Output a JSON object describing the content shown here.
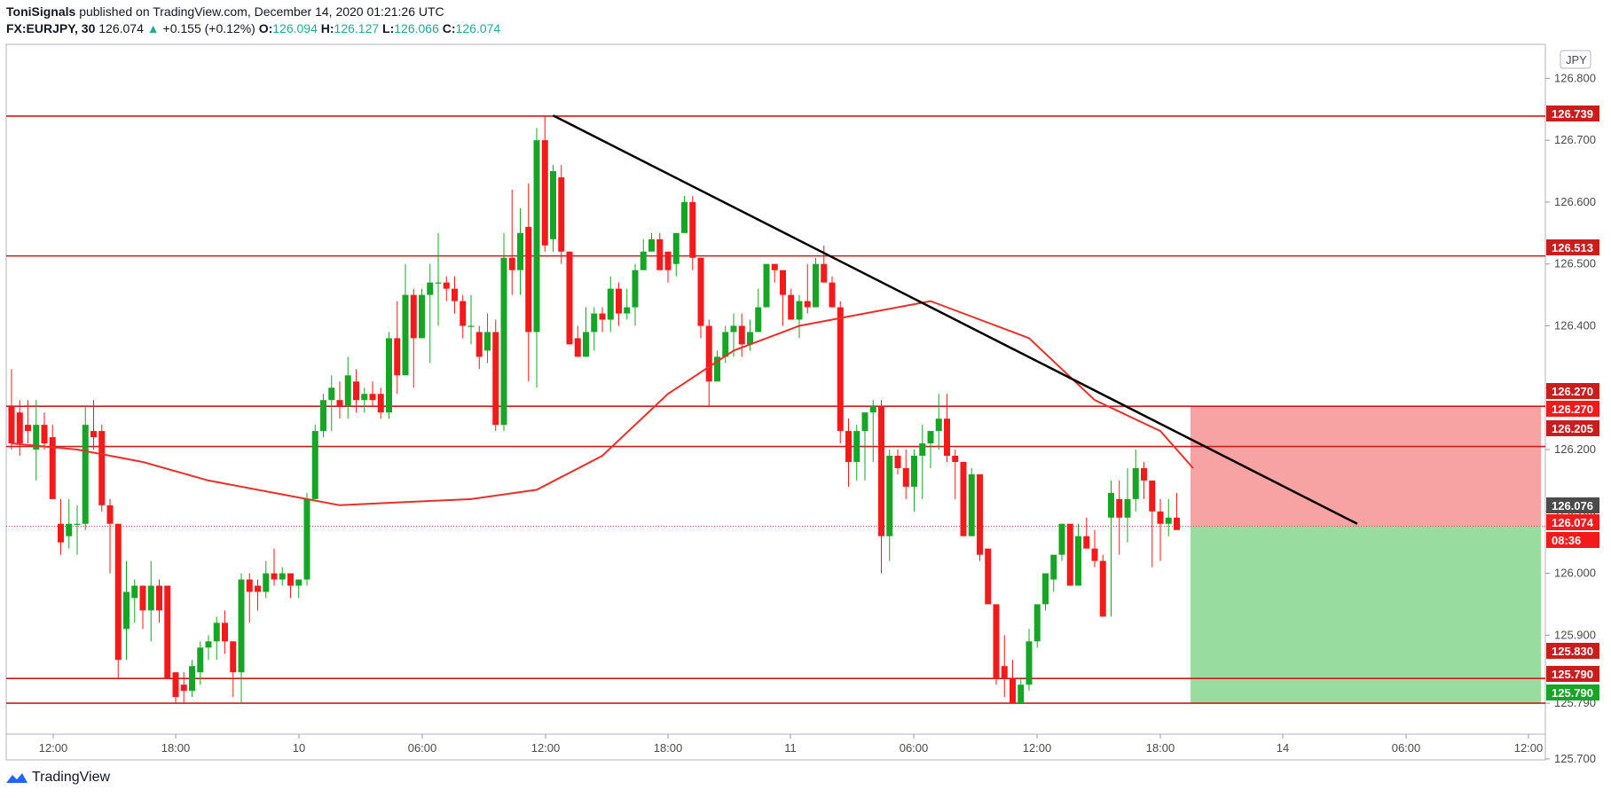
{
  "header": {
    "author": "ToniSignals",
    "published": "published on TradingView.com, December 14, 2020 01:21:26 UTC",
    "symbol": "FX:EURJPY, 30",
    "last": "126.074",
    "change": "+0.155 (+0.12%)",
    "o_label": "O:",
    "o_value": "126.094",
    "h_label": "H:",
    "h_value": "126.127",
    "l_label": "L:",
    "l_value": "126.066",
    "c_label": "C:",
    "c_value": "126.074"
  },
  "footer": {
    "brand": "TradingView"
  },
  "colors": {
    "up": "#17a527",
    "down": "#f21a1a",
    "hline": "#c91e1e",
    "ma": "#e8302a",
    "trend": "#000000",
    "risk": "#f7a3a3",
    "reward": "#98dd9f",
    "grid": "#e9e9e9"
  },
  "chart_data": {
    "type": "candlestick",
    "currency_label": "JPY",
    "ylim": [
      125.74,
      126.855
    ],
    "yticks": [
      "126.800",
      "126.700",
      "126.600",
      "126.500",
      "126.400",
      "126.300",
      "126.200",
      "126.100",
      "126.000",
      "125.900",
      "125.790",
      "125.700"
    ],
    "xticks": [
      "12:00",
      "18:00",
      "10",
      "06:00",
      "12:00",
      "18:00",
      "11",
      "06:00",
      "12:00",
      "18:00",
      "14",
      "06:00",
      "12:00"
    ],
    "candles": [
      [
        126.33,
        126.2,
        126.27,
        126.21
      ],
      [
        126.28,
        126.19,
        126.26,
        126.21
      ],
      [
        126.28,
        126.21,
        126.24,
        126.23
      ],
      [
        126.28,
        126.15,
        126.2,
        126.24
      ],
      [
        126.26,
        126.2,
        126.24,
        126.21
      ],
      [
        126.24,
        126.15,
        126.22,
        126.12
      ],
      [
        126.12,
        126.03,
        126.08,
        126.05
      ],
      [
        126.12,
        126.04,
        126.06,
        126.08
      ],
      [
        126.11,
        126.03,
        126.08,
        126.08
      ],
      [
        126.27,
        126.07,
        126.08,
        126.24
      ],
      [
        126.28,
        126.2,
        126.23,
        126.22
      ],
      [
        126.24,
        126.1,
        126.23,
        126.11
      ],
      [
        126.12,
        126.0,
        126.11,
        126.08
      ],
      [
        126.08,
        125.83,
        126.08,
        125.86
      ],
      [
        126.02,
        125.86,
        125.91,
        125.97
      ],
      [
        125.99,
        125.92,
        125.96,
        125.98
      ],
      [
        125.98,
        125.91,
        125.98,
        125.94
      ],
      [
        126.02,
        125.89,
        125.94,
        125.98
      ],
      [
        125.99,
        125.92,
        125.98,
        125.94
      ],
      [
        125.98,
        125.83,
        125.98,
        125.83
      ],
      [
        125.84,
        125.79,
        125.84,
        125.8
      ],
      [
        125.84,
        125.79,
        125.82,
        125.81
      ],
      [
        125.86,
        125.8,
        125.81,
        125.85
      ],
      [
        125.89,
        125.82,
        125.84,
        125.88
      ],
      [
        125.9,
        125.86,
        125.88,
        125.89
      ],
      [
        125.93,
        125.86,
        125.89,
        125.92
      ],
      [
        125.94,
        125.87,
        125.92,
        125.89
      ],
      [
        125.89,
        125.8,
        125.89,
        125.84
      ],
      [
        126.0,
        125.79,
        125.84,
        125.99
      ],
      [
        126.0,
        125.92,
        125.99,
        125.97
      ],
      [
        125.99,
        125.94,
        125.98,
        125.97
      ],
      [
        126.02,
        125.96,
        125.97,
        126.0
      ],
      [
        126.04,
        125.98,
        126.0,
        125.99
      ],
      [
        126.01,
        125.98,
        125.99,
        126.0
      ],
      [
        126.0,
        125.96,
        126.0,
        125.98
      ],
      [
        125.99,
        125.96,
        125.98,
        125.99
      ],
      [
        126.13,
        125.98,
        125.99,
        126.12
      ],
      [
        126.24,
        126.12,
        126.12,
        126.23
      ],
      [
        126.29,
        126.22,
        126.23,
        126.28
      ],
      [
        126.32,
        126.23,
        126.28,
        126.3
      ],
      [
        126.31,
        126.25,
        126.28,
        126.27
      ],
      [
        126.35,
        126.25,
        126.27,
        126.32
      ],
      [
        126.33,
        126.26,
        126.31,
        126.28
      ],
      [
        126.3,
        126.26,
        126.28,
        126.29
      ],
      [
        126.31,
        126.27,
        126.29,
        126.28
      ],
      [
        126.3,
        126.25,
        126.29,
        126.26
      ],
      [
        126.39,
        126.25,
        126.26,
        126.38
      ],
      [
        126.44,
        126.29,
        126.38,
        126.32
      ],
      [
        126.5,
        126.37,
        126.32,
        126.45
      ],
      [
        126.46,
        126.3,
        126.45,
        126.38
      ],
      [
        126.46,
        126.38,
        126.38,
        126.45
      ],
      [
        126.5,
        126.34,
        126.45,
        126.47
      ],
      [
        126.55,
        126.4,
        126.47,
        126.47
      ],
      [
        126.48,
        126.44,
        126.47,
        126.46
      ],
      [
        126.48,
        126.42,
        126.46,
        126.44
      ],
      [
        126.45,
        126.38,
        126.44,
        126.4
      ],
      [
        126.45,
        126.37,
        126.4,
        126.4
      ],
      [
        126.4,
        126.33,
        126.39,
        126.35
      ],
      [
        126.42,
        126.34,
        126.36,
        126.39
      ],
      [
        126.41,
        126.23,
        126.39,
        126.24
      ],
      [
        126.55,
        126.23,
        126.24,
        126.51
      ],
      [
        126.62,
        126.45,
        126.51,
        126.49
      ],
      [
        126.59,
        126.45,
        126.49,
        126.55
      ],
      [
        126.63,
        126.31,
        126.56,
        126.39
      ],
      [
        126.72,
        126.3,
        126.39,
        126.7
      ],
      [
        126.74,
        126.52,
        126.7,
        126.53
      ],
      [
        126.66,
        126.52,
        126.54,
        126.65
      ],
      [
        126.66,
        126.5,
        126.64,
        126.52
      ],
      [
        126.52,
        126.4,
        126.52,
        126.37
      ],
      [
        126.4,
        126.35,
        126.38,
        126.35
      ],
      [
        126.43,
        126.35,
        126.35,
        126.39
      ],
      [
        126.43,
        126.36,
        126.39,
        126.42
      ],
      [
        126.43,
        126.39,
        126.42,
        126.41
      ],
      [
        126.48,
        126.39,
        126.41,
        126.46
      ],
      [
        126.47,
        126.4,
        126.46,
        126.42
      ],
      [
        126.46,
        126.41,
        126.42,
        126.43
      ],
      [
        126.5,
        126.4,
        126.43,
        126.49
      ],
      [
        126.54,
        126.49,
        126.49,
        126.52
      ],
      [
        126.55,
        126.52,
        126.52,
        126.54
      ],
      [
        126.55,
        126.51,
        126.54,
        126.49
      ],
      [
        126.5,
        126.47,
        126.52,
        126.49
      ],
      [
        126.55,
        126.48,
        126.5,
        126.55
      ],
      [
        126.61,
        126.55,
        126.55,
        126.6
      ],
      [
        126.61,
        126.49,
        126.6,
        126.51
      ],
      [
        126.51,
        126.38,
        126.51,
        126.4
      ],
      [
        126.41,
        126.27,
        126.4,
        126.31
      ],
      [
        126.36,
        126.31,
        126.31,
        126.35
      ],
      [
        126.4,
        126.34,
        126.35,
        126.39
      ],
      [
        126.42,
        126.35,
        126.39,
        126.4
      ],
      [
        126.42,
        126.35,
        126.4,
        126.37
      ],
      [
        126.41,
        126.36,
        126.37,
        126.39
      ],
      [
        126.46,
        126.39,
        126.39,
        126.43
      ],
      [
        126.5,
        126.44,
        126.43,
        126.5
      ],
      [
        126.5,
        126.47,
        126.5,
        126.49
      ],
      [
        126.49,
        126.4,
        126.49,
        126.45
      ],
      [
        126.46,
        126.42,
        126.45,
        126.41
      ],
      [
        126.45,
        126.38,
        126.41,
        126.44
      ],
      [
        126.5,
        126.42,
        126.44,
        126.43
      ],
      [
        126.51,
        126.44,
        126.43,
        126.5
      ],
      [
        126.53,
        126.47,
        126.5,
        126.47
      ],
      [
        126.48,
        126.44,
        126.47,
        126.43
      ],
      [
        126.44,
        126.21,
        126.43,
        126.23
      ],
      [
        126.25,
        126.14,
        126.23,
        126.18
      ],
      [
        126.24,
        126.15,
        126.18,
        126.23
      ],
      [
        126.26,
        126.15,
        126.23,
        126.26
      ],
      [
        126.28,
        126.18,
        126.26,
        126.27
      ],
      [
        126.28,
        126.0,
        126.27,
        126.06
      ],
      [
        126.2,
        126.02,
        126.06,
        126.19
      ],
      [
        126.2,
        126.16,
        126.19,
        126.17
      ],
      [
        126.2,
        126.12,
        126.17,
        126.14
      ],
      [
        126.2,
        126.1,
        126.14,
        126.19
      ],
      [
        126.24,
        126.12,
        126.19,
        126.21
      ],
      [
        126.23,
        126.17,
        126.21,
        126.23
      ],
      [
        126.29,
        126.2,
        126.23,
        126.25
      ],
      [
        126.29,
        126.18,
        126.25,
        126.19
      ],
      [
        126.2,
        126.12,
        126.19,
        126.18
      ],
      [
        126.18,
        126.06,
        126.18,
        126.06
      ],
      [
        126.17,
        126.06,
        126.06,
        126.16
      ],
      [
        126.16,
        126.02,
        126.16,
        126.03
      ],
      [
        126.03,
        125.95,
        126.04,
        125.95
      ],
      [
        125.95,
        125.82,
        125.95,
        125.83
      ],
      [
        125.9,
        125.8,
        125.85,
        125.83
      ],
      [
        125.86,
        125.79,
        125.83,
        125.79
      ],
      [
        125.83,
        125.79,
        125.79,
        125.82
      ],
      [
        125.91,
        125.81,
        125.82,
        125.89
      ],
      [
        125.95,
        125.88,
        125.89,
        125.95
      ],
      [
        125.99,
        125.94,
        125.95,
        126.0
      ],
      [
        126.02,
        125.97,
        125.99,
        126.03
      ],
      [
        126.08,
        126.02,
        126.03,
        126.08
      ],
      [
        126.08,
        125.98,
        126.08,
        125.98
      ],
      [
        126.08,
        125.98,
        125.98,
        126.06
      ],
      [
        126.09,
        126.04,
        126.06,
        126.04
      ],
      [
        126.07,
        126.01,
        126.04,
        126.02
      ],
      [
        126.03,
        125.93,
        126.02,
        125.93
      ],
      [
        126.15,
        125.93,
        126.09,
        126.13
      ],
      [
        126.15,
        126.03,
        126.12,
        126.09
      ],
      [
        126.17,
        126.05,
        126.09,
        126.12
      ],
      [
        126.2,
        126.1,
        126.12,
        126.17
      ],
      [
        126.18,
        126.12,
        126.17,
        126.15
      ],
      [
        126.15,
        126.01,
        126.15,
        126.1
      ],
      [
        126.12,
        126.02,
        126.1,
        126.08
      ],
      [
        126.12,
        126.06,
        126.08,
        126.09
      ],
      [
        126.13,
        126.07,
        126.09,
        126.07
      ]
    ],
    "ma": [
      [
        0,
        126.21
      ],
      [
        8,
        126.2
      ],
      [
        16,
        126.18
      ],
      [
        24,
        126.15
      ],
      [
        32,
        126.13
      ],
      [
        40,
        126.11
      ],
      [
        48,
        126.115
      ],
      [
        56,
        126.12
      ],
      [
        64,
        126.135
      ],
      [
        72,
        126.19
      ],
      [
        80,
        126.29
      ],
      [
        88,
        126.36
      ],
      [
        96,
        126.4
      ],
      [
        104,
        126.42
      ],
      [
        112,
        126.44
      ],
      [
        116,
        126.42
      ],
      [
        124,
        126.38
      ],
      [
        132,
        126.28
      ],
      [
        140,
        126.23
      ],
      [
        144,
        126.17
      ]
    ],
    "hlines": [
      126.739,
      126.513,
      126.27,
      126.205,
      125.83,
      125.79
    ],
    "trendline": {
      "from": [
        66,
        126.74
      ],
      "to": [
        164,
        126.08
      ]
    },
    "position": {
      "entry": 126.076,
      "stop": 126.27,
      "target": 125.79,
      "start_index": 144,
      "end_index": 171
    },
    "price_labels": [
      {
        "value": "126.739",
        "color": "#c91e1e"
      },
      {
        "value": "126.513",
        "color": "#c91e1e"
      },
      {
        "value": "126.270",
        "color": "#c91e1e"
      },
      {
        "value": "126.270",
        "color": "#f21a1a"
      },
      {
        "value": "126.205",
        "color": "#c91e1e"
      },
      {
        "value": "126.076",
        "color": "#4b4b4b"
      },
      {
        "value": "126.074",
        "color": "#f21a1a"
      },
      {
        "value": "08:36",
        "color": "#f21a1a"
      },
      {
        "value": "125.830",
        "color": "#c91e1e"
      },
      {
        "value": "125.790",
        "color": "#c91e1e"
      },
      {
        "value": "125.790",
        "color": "#17a527"
      }
    ]
  }
}
